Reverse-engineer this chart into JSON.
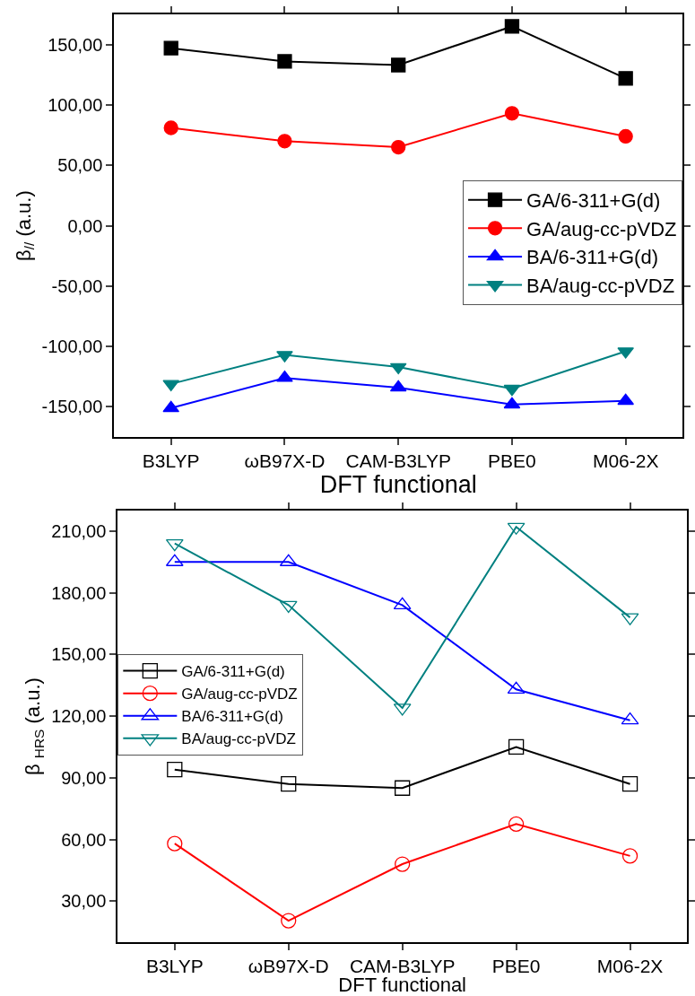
{
  "chart_data": [
    {
      "type": "line",
      "xlabel": "DFT functional",
      "ylabel": "β$_{//}$ (a.u.)",
      "categories": [
        "B3LYP",
        "ωB97X-D",
        "CAM-B3LYP",
        "PBE0",
        "M06-2X"
      ],
      "ylim": [
        -175,
        175
      ],
      "yticks": [
        {
          "value": -150,
          "label": "-150,00"
        },
        {
          "value": -100,
          "label": "-100,00"
        },
        {
          "value": -50,
          "label": "-50,00"
        },
        {
          "value": 0,
          "label": "0,00"
        },
        {
          "value": 50,
          "label": "50,00"
        },
        {
          "value": 100,
          "label": "100,00"
        },
        {
          "value": 150,
          "label": "150,00"
        }
      ],
      "grid": false,
      "legend": "right",
      "series": [
        {
          "name": "GA/6-311+G(d)",
          "color": "#000000",
          "marker": "square",
          "values": [
            147,
            136,
            133,
            165,
            122
          ]
        },
        {
          "name": "GA/aug-cc-pVDZ",
          "color": "#ff0000",
          "marker": "circle",
          "values": [
            81,
            70,
            65,
            93,
            74
          ]
        },
        {
          "name": "BA/6-311+G(d)",
          "color": "#0000ff",
          "marker": "triangle",
          "values": [
            -151,
            -126,
            -134,
            -148,
            -145
          ]
        },
        {
          "name": "BA/aug-cc-pVDZ",
          "color": "#008080",
          "marker": "triangle-down",
          "values": [
            -131,
            -107,
            -117,
            -135,
            -104
          ]
        }
      ]
    },
    {
      "type": "line",
      "xlabel": "DFT functional",
      "ylabel": "β $_{HRS}$ (a.u.)",
      "categories": [
        "B3LYP",
        "ωB97X-D",
        "CAM-B3LYP",
        "PBE0",
        "M06-2X"
      ],
      "ylim": [
        10,
        220
      ],
      "yticks": [
        {
          "value": 30,
          "label": "30,00"
        },
        {
          "value": 60,
          "label": "60,00"
        },
        {
          "value": 90,
          "label": "90,00"
        },
        {
          "value": 120,
          "label": "120,00"
        },
        {
          "value": 150,
          "label": "150,00"
        },
        {
          "value": 180,
          "label": "180,00"
        },
        {
          "value": 210,
          "label": "210,00"
        }
      ],
      "grid": false,
      "legend": "left",
      "series": [
        {
          "name": "GA/6-311+G(d)",
          "color": "#000000",
          "marker": "square-open",
          "values": [
            94,
            87,
            85,
            105,
            87
          ]
        },
        {
          "name": "GA/aug-cc-pVDZ",
          "color": "#ff0000",
          "marker": "circle-open",
          "values": [
            58,
            20.5,
            48,
            67.5,
            52
          ]
        },
        {
          "name": "BA/6-311+G(d)",
          "color": "#0000ff",
          "marker": "triangle-open",
          "values": [
            195,
            195,
            174,
            133,
            118
          ]
        },
        {
          "name": "BA/aug-cc-pVDZ",
          "color": "#008080",
          "marker": "triangle-down-open",
          "values": [
            204,
            174,
            124,
            212,
            168
          ]
        }
      ]
    }
  ]
}
